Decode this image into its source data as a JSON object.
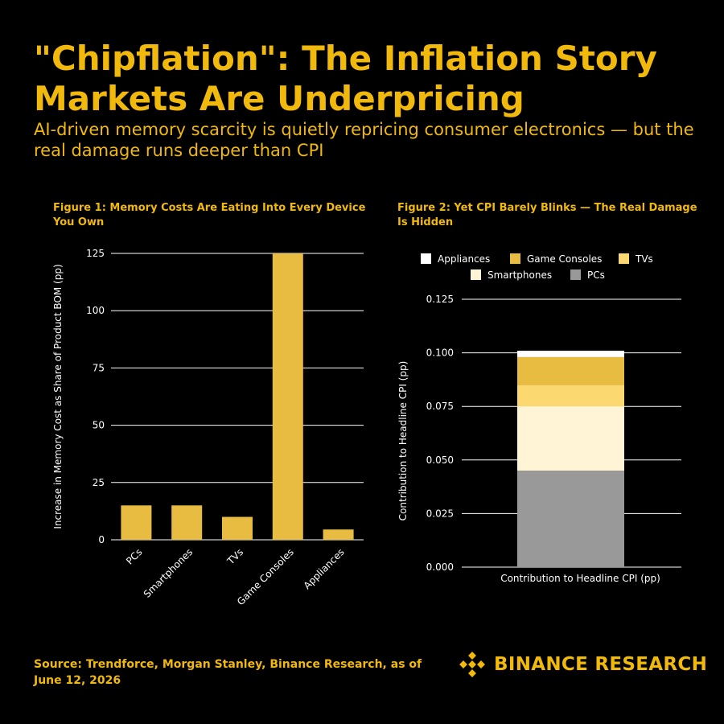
{
  "header": {
    "title": "\"Chipflation\": The Inflation Story Markets Are Underpricing",
    "subtitle": "AI-driven memory scarcity is quietly repricing consumer electronics — but the real damage runs deeper than CPI"
  },
  "colors": {
    "accent": "#F0B90B",
    "bar": "#E8BC40",
    "background": "#000000",
    "text": "#FFFFFF"
  },
  "chart_data": [
    {
      "type": "bar",
      "title": "Figure 1: Memory Costs Are Eating Into Every Device You Own",
      "categories": [
        "PCs",
        "Smartphones",
        "TVs",
        "Game Consoles",
        "Appliances"
      ],
      "values": [
        15,
        15,
        10,
        125,
        4.5
      ],
      "xlabel": "",
      "ylabel": "Increase in Memory Cost as Share of Product BOM (pp)",
      "ylim": [
        0,
        125
      ],
      "yticks": [
        0,
        25,
        50,
        75,
        100,
        125
      ],
      "grid": true,
      "legend": "none"
    },
    {
      "type": "bar",
      "stacked": true,
      "title": "Figure 2: Yet CPI Barely Blinks — The Real Damage Is Hidden",
      "categories": [
        "Contribution to Headline CPI (pp)"
      ],
      "series": [
        {
          "name": "PCs",
          "values": [
            0.045
          ],
          "color": "#999999"
        },
        {
          "name": "Smartphones",
          "values": [
            0.03
          ],
          "color": "#FFF5D6"
        },
        {
          "name": "TVs",
          "values": [
            0.01
          ],
          "color": "#FBD970"
        },
        {
          "name": "Game Consoles",
          "values": [
            0.013
          ],
          "color": "#E8BC40"
        },
        {
          "name": "Appliances",
          "values": [
            0.003
          ],
          "color": "#FFFFFF"
        }
      ],
      "legend_order": [
        "Appliances",
        "Game Consoles",
        "TVs",
        "Smartphones",
        "PCs"
      ],
      "xlabel": "Contribution to Headline CPI (pp)",
      "ylabel": "Contribution to Headline CPI (pp)",
      "ylim": [
        0,
        0.125
      ],
      "yticks": [
        "0.000",
        "0.025",
        "0.050",
        "0.075",
        "0.100",
        "0.125"
      ],
      "grid": true,
      "legend": "top"
    }
  ],
  "footer": {
    "source": "Source: Trendforce, Morgan Stanley, Binance Research, as of June 12, 2026",
    "brand": "BINANCE RESEARCH",
    "logo_icon": "binance-diamond-logo-icon"
  }
}
